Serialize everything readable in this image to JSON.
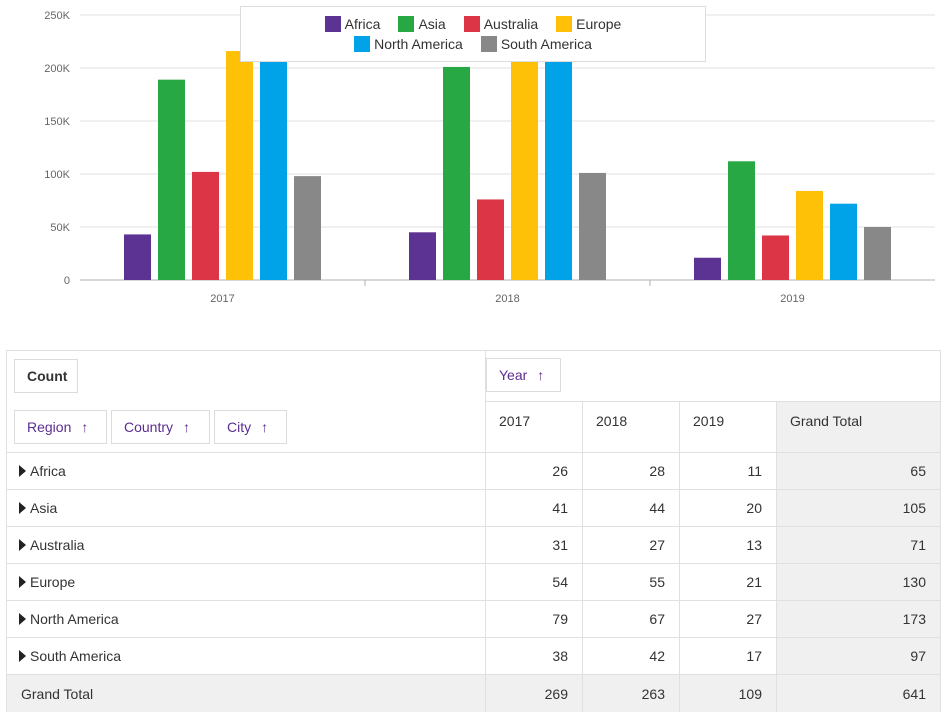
{
  "chart_data": {
    "type": "bar",
    "categories": [
      "2017",
      "2018",
      "2019"
    ],
    "series": [
      {
        "name": "Africa",
        "color": "#5c3392",
        "values": [
          43000,
          45000,
          21000
        ]
      },
      {
        "name": "Asia",
        "color": "#27a844",
        "values": [
          189000,
          201000,
          112000
        ]
      },
      {
        "name": "Australia",
        "color": "#dc3545",
        "values": [
          102000,
          76000,
          42000
        ]
      },
      {
        "name": "Europe",
        "color": "#ffc107",
        "values": [
          216000,
          216000,
          84000
        ]
      },
      {
        "name": "North America",
        "color": "#00a2e8",
        "values": [
          216000,
          216000,
          72000
        ]
      },
      {
        "name": "South America",
        "color": "#888888",
        "values": [
          98000,
          101000,
          50000
        ]
      }
    ],
    "ylim": [
      0,
      250000
    ],
    "yticks": [
      "0",
      "50K",
      "100K",
      "150K",
      "200K",
      "250K"
    ],
    "yticks_values": [
      0,
      50000,
      100000,
      150000,
      200000,
      250000
    ],
    "grid": true,
    "legend_position": "top"
  },
  "pivot": {
    "data_field": "Count",
    "column_field": "Year",
    "row_fields": [
      "Region",
      "Country",
      "City"
    ],
    "columns": [
      "2017",
      "2018",
      "2019",
      "Grand Total"
    ],
    "rows": [
      {
        "label": "Africa",
        "values": [
          "26",
          "28",
          "11",
          "65"
        ]
      },
      {
        "label": "Asia",
        "values": [
          "41",
          "44",
          "20",
          "105"
        ]
      },
      {
        "label": "Australia",
        "values": [
          "31",
          "27",
          "13",
          "71"
        ]
      },
      {
        "label": "Europe",
        "values": [
          "54",
          "55",
          "21",
          "130"
        ]
      },
      {
        "label": "North America",
        "values": [
          "79",
          "67",
          "27",
          "173"
        ]
      },
      {
        "label": "South America",
        "values": [
          "38",
          "42",
          "17",
          "97"
        ]
      }
    ],
    "grand_total": {
      "label": "Grand Total",
      "values": [
        "269",
        "263",
        "109",
        "641"
      ]
    }
  },
  "icons": {
    "sort_arrow": "↑",
    "expand": "triangle-right-icon"
  }
}
